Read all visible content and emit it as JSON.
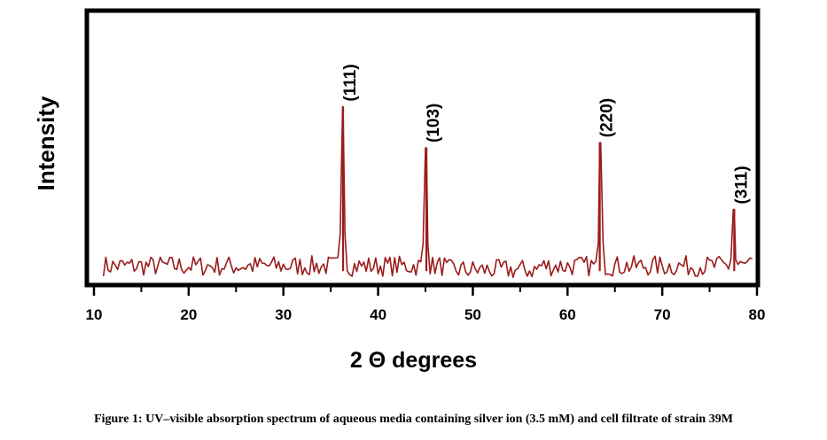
{
  "caption": "Figure 1: UV–visible absorption spectrum of aqueous media containing silver ion (3.5 mM) and cell filtrate of strain 39M",
  "chart_data": {
    "type": "line",
    "title": "",
    "xlabel": "2 Θ degrees",
    "ylabel": "Intensity",
    "xlim": [
      10,
      80
    ],
    "xticks": [
      10,
      20,
      30,
      40,
      50,
      60,
      70,
      80
    ],
    "ylim": [
      0,
      100
    ],
    "y_ticks_shown": false,
    "grid": false,
    "line_color": "#9b1b1b",
    "frame_color": "#000000",
    "peaks": [
      {
        "x": 36.3,
        "y": 66,
        "label": "(111)"
      },
      {
        "x": 45.1,
        "y": 50,
        "label": "(103)"
      },
      {
        "x": 63.4,
        "y": 52,
        "label": "(220)"
      },
      {
        "x": 77.6,
        "y": 26,
        "label": "(311)"
      }
    ]
  }
}
